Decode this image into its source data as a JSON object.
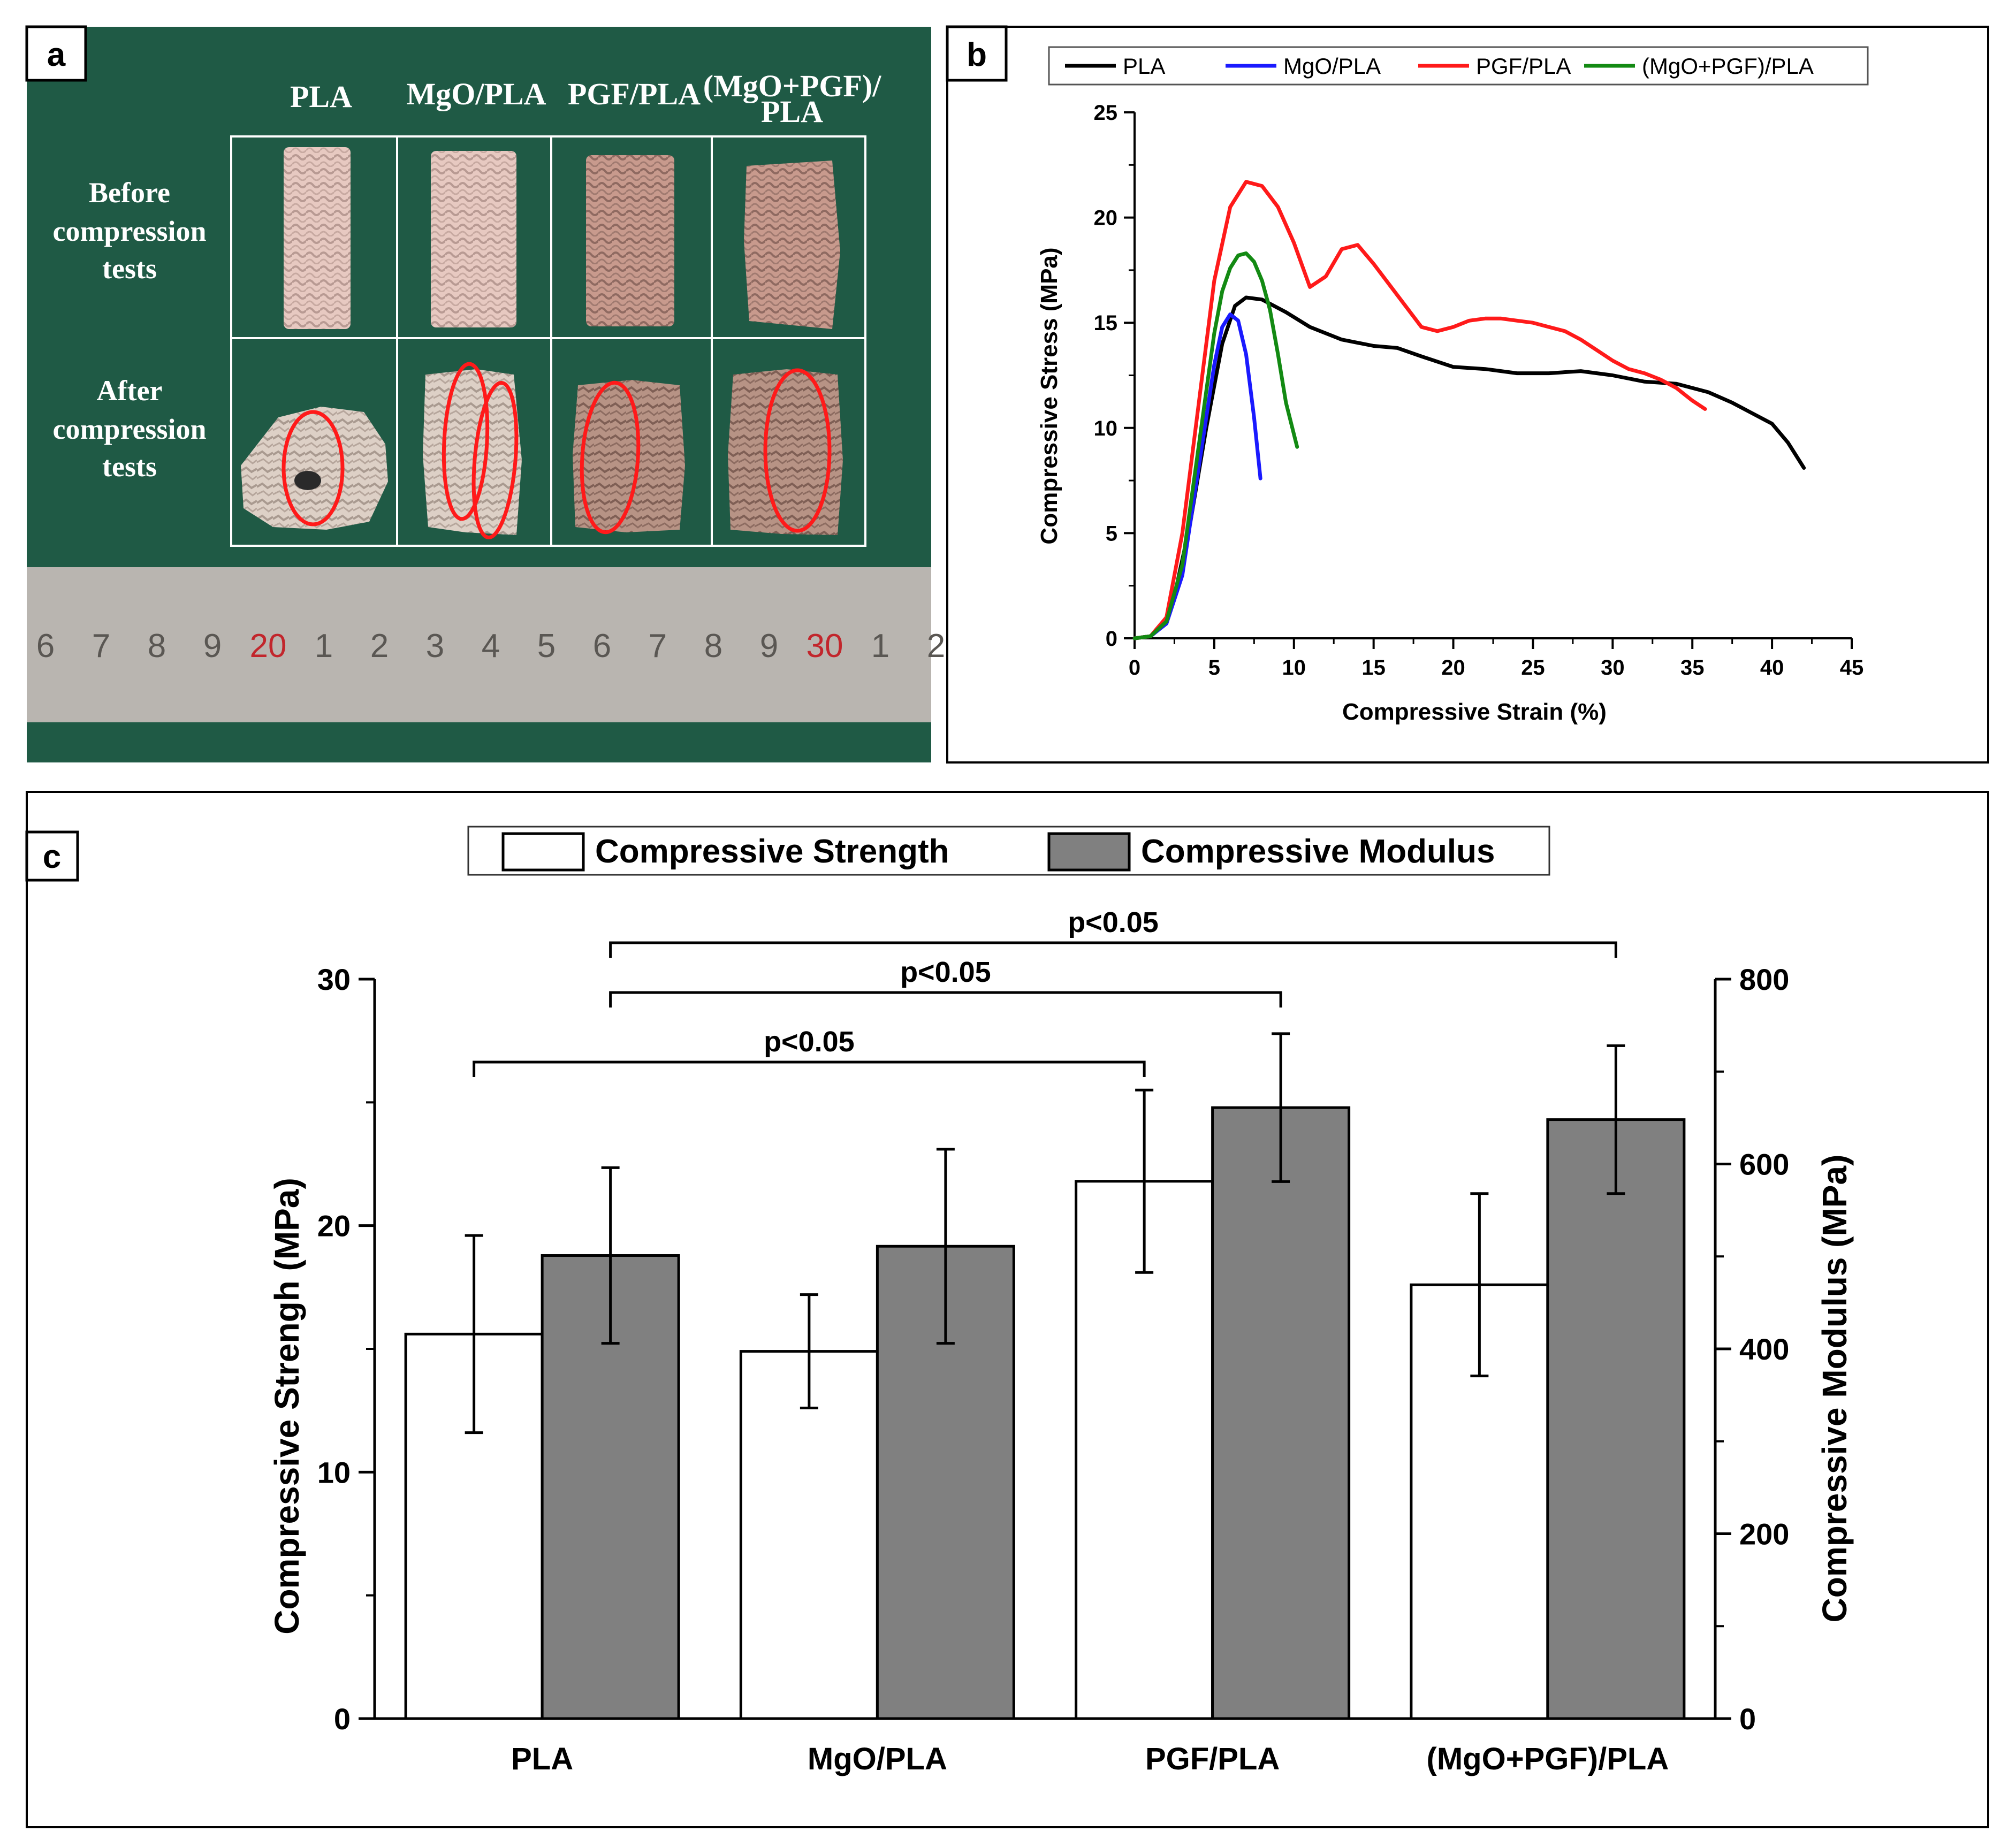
{
  "panels": {
    "a": {
      "label": "a",
      "column_headers": [
        "PLA",
        "MgO/PLA",
        "PGF/PLA",
        "(MgO+PGF)/"
      ],
      "column_header_line2": "PLA",
      "row_before": [
        "Before",
        "compression",
        "tests"
      ],
      "row_after": [
        "After",
        "compression",
        "tests"
      ],
      "ruler_numbers": [
        "6",
        "7",
        "8",
        "9",
        "20",
        "1",
        "2",
        "3",
        "4",
        "5",
        "6",
        "7",
        "8",
        "9",
        "30",
        "1",
        "2"
      ],
      "colors": {
        "background": "#1f5a45",
        "specimen_before": "#e3c4bc",
        "specimen_after": "#d8c8bd",
        "ellipse": "#ff1a1a",
        "ruler": "#b9b5b0"
      }
    },
    "b": {
      "label": "b"
    },
    "c": {
      "label": "c"
    }
  },
  "chart_data": [
    {
      "type": "line",
      "panel": "b",
      "title": "",
      "xlabel": "Compressive Strain (%)",
      "ylabel": "Compressive Stress (MPa)",
      "xlim": [
        0,
        45
      ],
      "ylim": [
        0,
        25
      ],
      "xticks": [
        0,
        5,
        10,
        15,
        20,
        25,
        30,
        35,
        40,
        45
      ],
      "yticks": [
        0,
        5,
        10,
        15,
        20,
        25
      ],
      "legend_position": "top",
      "series": [
        {
          "name": "PLA",
          "color": "#000000",
          "x": [
            0,
            1,
            1.8,
            2.5,
            3.5,
            4.5,
            5.5,
            6.3,
            7,
            8,
            9.5,
            11,
            13,
            15,
            16.5,
            18,
            20,
            22,
            24,
            26,
            28,
            30,
            32,
            34,
            36,
            37.5,
            38.5,
            40,
            41,
            42
          ],
          "y": [
            0,
            0.1,
            0.6,
            2,
            5.5,
            10,
            14,
            15.8,
            16.2,
            16.1,
            15.5,
            14.8,
            14.2,
            13.9,
            13.8,
            13.4,
            12.9,
            12.8,
            12.6,
            12.6,
            12.7,
            12.5,
            12.2,
            12.1,
            11.7,
            11.2,
            10.8,
            10.2,
            9.3,
            8.1
          ]
        },
        {
          "name": "MgO/PLA",
          "color": "#1a1aff",
          "x": [
            0,
            1,
            2,
            3,
            4,
            5,
            5.5,
            6,
            6.5,
            7,
            7.5,
            7.9
          ],
          "y": [
            0,
            0.1,
            0.7,
            3,
            8,
            13,
            14.8,
            15.4,
            15.1,
            13.5,
            10.5,
            7.6
          ]
        },
        {
          "name": "PGF/PLA",
          "color": "#ff1a1a",
          "x": [
            0,
            1,
            2,
            3,
            4,
            5,
            6,
            7,
            8,
            9,
            10,
            11,
            12,
            13,
            14,
            15,
            16,
            17,
            18,
            19,
            20,
            21,
            22,
            23,
            24,
            25,
            26,
            27,
            28,
            29,
            30,
            31,
            32,
            33,
            34,
            35,
            35.8
          ],
          "y": [
            0,
            0.1,
            1,
            5,
            11,
            17,
            20.5,
            21.7,
            21.5,
            20.5,
            18.8,
            16.7,
            17.2,
            18.5,
            18.7,
            17.8,
            16.8,
            15.8,
            14.8,
            14.6,
            14.8,
            15.1,
            15.2,
            15.2,
            15.1,
            15.0,
            14.8,
            14.6,
            14.2,
            13.7,
            13.2,
            12.8,
            12.6,
            12.3,
            11.9,
            11.3,
            10.9
          ]
        },
        {
          "name": "(MgO+PGF)/PLA",
          "color": "#138a13",
          "x": [
            0,
            1,
            2,
            3,
            4,
            5,
            5.5,
            6,
            6.5,
            7,
            7.5,
            8,
            8.5,
            9,
            9.5,
            10.2
          ],
          "y": [
            0,
            0.1,
            0.8,
            3.5,
            9,
            14.5,
            16.5,
            17.6,
            18.2,
            18.3,
            17.9,
            17.0,
            15.6,
            13.5,
            11.2,
            9.1
          ]
        }
      ]
    },
    {
      "type": "bar",
      "panel": "c",
      "title": "",
      "xlabel": "",
      "ylabel": "Compressive Strengh (MPa)",
      "y2label": "Compressive Modulus (MPa)",
      "ylim": [
        0,
        30
      ],
      "y2lim": [
        0,
        800
      ],
      "yticks": [
        0,
        10,
        20,
        30
      ],
      "y2ticks": [
        0,
        200,
        400,
        600,
        800
      ],
      "legend_position": "top",
      "categories": [
        "PLA",
        "MgO/PLA",
        "PGF/PLA",
        "(MgO+PGF)/PLA"
      ],
      "series": [
        {
          "name": "Compressive Strength",
          "axis": "left",
          "color": "#ffffff",
          "values": [
            15.6,
            14.9,
            21.8,
            17.6
          ],
          "errors": [
            4.0,
            2.3,
            3.7,
            3.7
          ]
        },
        {
          "name": "Compressive Modulus",
          "axis": "right",
          "color": "#808080",
          "values": [
            501,
            511,
            661,
            648
          ],
          "errors": [
            95,
            105,
            80,
            80
          ]
        }
      ],
      "annotations": [
        {
          "text": "p<0.05",
          "from_category": 0,
          "from_series": 0,
          "to_category": 2,
          "to_series": 0
        },
        {
          "text": "p<0.05",
          "from_category": 0,
          "from_series": 1,
          "to_category": 2,
          "to_series": 1
        },
        {
          "text": "p<0.05",
          "from_category": 0,
          "from_series": 1,
          "to_category": 3,
          "to_series": 1
        }
      ]
    }
  ]
}
